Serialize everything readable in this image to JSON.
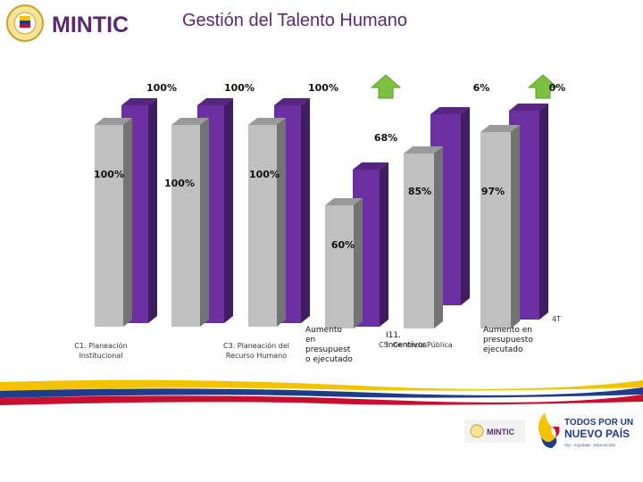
{
  "header": {
    "brand_name": "MINTIC",
    "title": "Gestión del Talento Humano"
  },
  "colors": {
    "purple": "#6b2fa0",
    "gray": "#c0c0c0",
    "arrow_green": "#7cc142",
    "title_purple": "#5b2a6e"
  },
  "chart_data": {
    "type": "bar",
    "value_labels": [
      "100%",
      "100%",
      "100%",
      "100%",
      "100%",
      "100%",
      "60%",
      "68%",
      "85%",
      "97%"
    ],
    "partial_value_labels": [
      "6%",
      "0%"
    ],
    "corner_label": "4T",
    "categories": [
      "C1. Planeación Institucional",
      "C3. Planeación del Recurso Humano",
      "Aumento en presupuesto ejecutado",
      "I11. Incentivos",
      "C5. Gerencia Pública",
      "Aumento en presupuesto ejecutado"
    ]
  },
  "footer": {
    "mintic_small": "MINTIC",
    "gov_line1": "TODOS POR UN",
    "gov_line2": "NUEVO PAÍS",
    "gov_line3": "PAZ · EQUIDAD · EDUCACIÓN"
  }
}
